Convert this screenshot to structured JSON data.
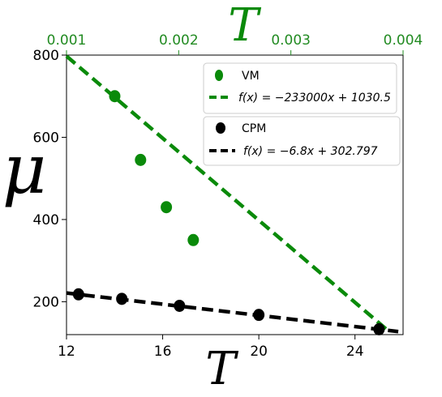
{
  "chart_data": {
    "type": "scatter",
    "title": "",
    "xlabel_bottom": "T",
    "xlabel_top": "T",
    "ylabel": "μ",
    "grid": false,
    "bottom_axis": {
      "range": [
        12,
        26
      ],
      "ticks": [
        "12",
        "16",
        "20",
        "24"
      ],
      "tick_values": [
        12,
        16,
        20,
        24
      ],
      "color": "#000000"
    },
    "top_axis": {
      "range": [
        0.001,
        0.004
      ],
      "ticks": [
        "0.001",
        "0.002",
        "0.003",
        "0.004"
      ],
      "tick_values": [
        0.001,
        0.002,
        0.003,
        0.004
      ],
      "color": "#228B22"
    },
    "y_axis": {
      "range": [
        120,
        800
      ],
      "ticks": [
        "200",
        "400",
        "600",
        "800"
      ],
      "tick_values": [
        200,
        400,
        600,
        800
      ]
    },
    "series": [
      {
        "name": "VM",
        "axis": "top",
        "color": "#0a8a0a",
        "x": [
          0.00143,
          0.00166,
          0.00189,
          0.00213
        ],
        "y": [
          700,
          545,
          430,
          350
        ]
      },
      {
        "name": "CPM",
        "axis": "bottom",
        "color": "#000000",
        "x": [
          12.5,
          14.3,
          16.7,
          20.0,
          25.0
        ],
        "y": [
          218,
          207,
          190,
          168,
          133
        ]
      }
    ],
    "fits": [
      {
        "label": "f(x) = −233000x + 1030.5",
        "axis": "top",
        "slope": -233000,
        "intercept": 1030.5,
        "x_range": [
          0.001,
          0.00387
        ],
        "color": "#0a8a0a"
      },
      {
        "label": "f(x) = −6.8x + 302.797",
        "axis": "bottom",
        "slope": -6.8,
        "intercept": 302.797,
        "x_range": [
          12,
          25.8
        ],
        "color": "#000000"
      }
    ],
    "legends": [
      {
        "position": "upper-right",
        "entries": [
          "VM",
          "f(x) = −233000x + 1030.5"
        ]
      },
      {
        "position": "right",
        "entries": [
          "CPM",
          "f(x) = −6.8x + 302.797"
        ]
      }
    ]
  }
}
